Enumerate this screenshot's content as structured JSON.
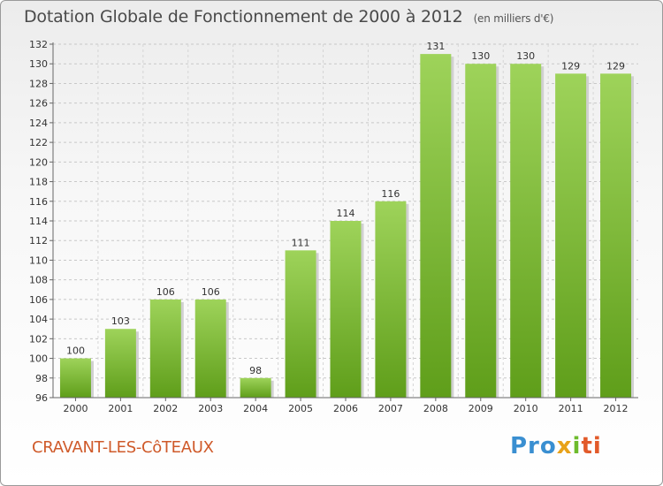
{
  "header": {
    "title": "Dotation Globale de Fonctionnement de 2000 à 2012",
    "unit": "(en milliers d'€)"
  },
  "footer": {
    "commune": "CRAVANT-LES-CôTEAUX",
    "logo": [
      "Pro",
      "x",
      "i",
      "ti"
    ]
  },
  "colors": {
    "bar_top": "#9ed35a",
    "bar_bottom": "#5f9e1a",
    "commune": "#cf5a2a"
  },
  "chart_data": {
    "type": "bar",
    "categories": [
      "2000",
      "2001",
      "2002",
      "2003",
      "2004",
      "2005",
      "2006",
      "2007",
      "2008",
      "2009",
      "2010",
      "2011",
      "2012"
    ],
    "values": [
      100,
      103,
      106,
      106,
      98,
      111,
      114,
      116,
      131,
      130,
      130,
      129,
      129
    ],
    "ylim": [
      96,
      132
    ],
    "yticks": [
      96,
      98,
      100,
      102,
      104,
      106,
      108,
      110,
      112,
      114,
      116,
      118,
      120,
      122,
      124,
      126,
      128,
      130,
      132
    ],
    "grid": true,
    "data_labels": true
  }
}
